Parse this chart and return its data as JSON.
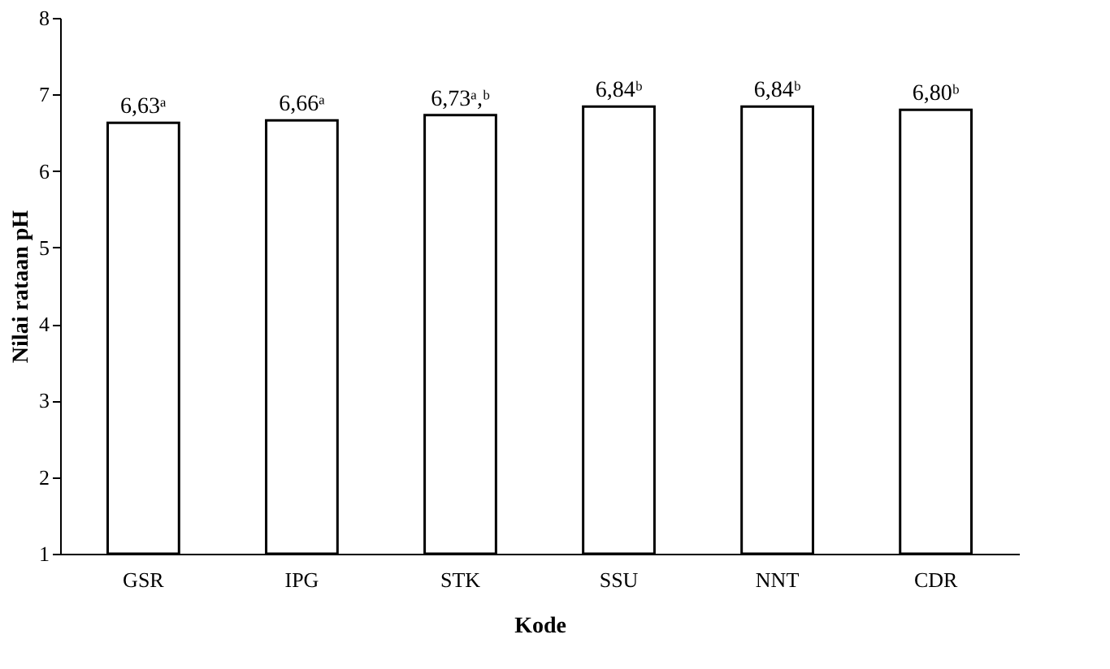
{
  "chart_data": {
    "type": "bar",
    "xlabel": "Kode",
    "ylabel": "Nilai rataan pH",
    "categories": [
      "GSR",
      "IPG",
      "STK",
      "SSU",
      "NNT",
      "CDR"
    ],
    "values": [
      6.63,
      6.66,
      6.73,
      6.84,
      6.84,
      6.8
    ],
    "value_labels": [
      "6,63ᵃ",
      "6,66ᵃ",
      "6,73ᵃ,ᵇ",
      "6,84ᵇ",
      "6,84ᵇ",
      "6,80ᵇ"
    ],
    "color": "#ffffff",
    "ylim": [
      1,
      8
    ],
    "yticks": [
      1,
      2,
      3,
      4,
      5,
      6,
      7,
      8
    ],
    "grid": false
  }
}
